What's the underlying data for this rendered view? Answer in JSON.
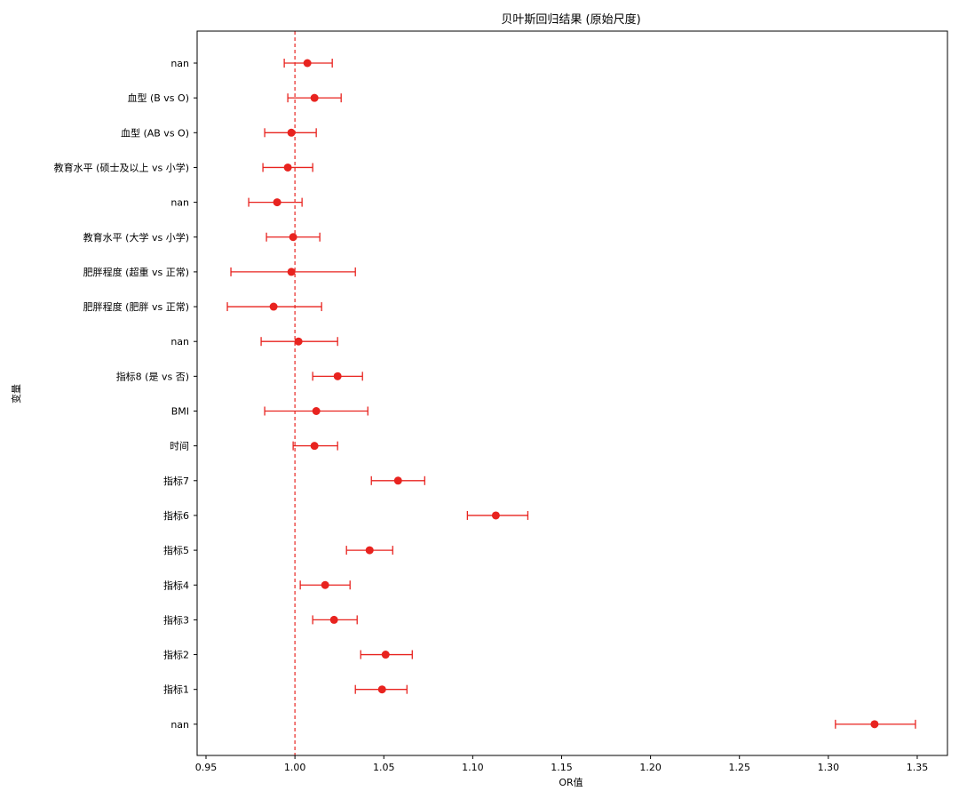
{
  "chart_data": {
    "type": "scatter",
    "subtype": "forest-plot",
    "title": "贝叶斯回归结果 (原始尺度)",
    "xlabel": "OR值",
    "ylabel": "变量",
    "xlim": [
      0.945,
      1.367
    ],
    "xticks": [
      0.95,
      1.0,
      1.05,
      1.1,
      1.15,
      1.2,
      1.25,
      1.3,
      1.35
    ],
    "xtick_labels": [
      "0.95",
      "1.00",
      "1.05",
      "1.10",
      "1.15",
      "1.20",
      "1.25",
      "1.30",
      "1.35"
    ],
    "reference_line": {
      "x": 1.0,
      "style": "dashed",
      "color": "#e8231f"
    },
    "marker_color": "#e8231f",
    "grid": false,
    "series": [
      {
        "values": [
          {
            "label": "nan",
            "or": 1.007,
            "lower": 0.994,
            "upper": 1.021
          },
          {
            "label": "血型 (B vs O)",
            "or": 1.011,
            "lower": 0.996,
            "upper": 1.026
          },
          {
            "label": "血型 (AB vs O)",
            "or": 0.998,
            "lower": 0.983,
            "upper": 1.012
          },
          {
            "label": "教育水平 (硕士及以上 vs 小学)",
            "or": 0.996,
            "lower": 0.982,
            "upper": 1.01
          },
          {
            "label": "nan",
            "or": 0.99,
            "lower": 0.974,
            "upper": 1.004
          },
          {
            "label": "教育水平 (大学 vs 小学)",
            "or": 0.999,
            "lower": 0.984,
            "upper": 1.014
          },
          {
            "label": "肥胖程度 (超重 vs 正常)",
            "or": 0.998,
            "lower": 0.964,
            "upper": 1.034
          },
          {
            "label": "肥胖程度 (肥胖 vs 正常)",
            "or": 0.988,
            "lower": 0.962,
            "upper": 1.015
          },
          {
            "label": "nan",
            "or": 1.002,
            "lower": 0.981,
            "upper": 1.024
          },
          {
            "label": "指标8 (是 vs 否)",
            "or": 1.024,
            "lower": 1.01,
            "upper": 1.038
          },
          {
            "label": "BMI",
            "or": 1.012,
            "lower": 0.983,
            "upper": 1.041
          },
          {
            "label": "时间",
            "or": 1.011,
            "lower": 0.999,
            "upper": 1.024
          },
          {
            "label": "指标7",
            "or": 1.058,
            "lower": 1.043,
            "upper": 1.073
          },
          {
            "label": "指标6",
            "or": 1.113,
            "lower": 1.097,
            "upper": 1.131
          },
          {
            "label": "指标5",
            "or": 1.042,
            "lower": 1.029,
            "upper": 1.055
          },
          {
            "label": "指标4",
            "or": 1.017,
            "lower": 1.003,
            "upper": 1.031
          },
          {
            "label": "指标3",
            "or": 1.022,
            "lower": 1.01,
            "upper": 1.035
          },
          {
            "label": "指标2",
            "or": 1.051,
            "lower": 1.037,
            "upper": 1.066
          },
          {
            "label": "指标1",
            "or": 1.049,
            "lower": 1.034,
            "upper": 1.063
          },
          {
            "label": "nan",
            "or": 1.326,
            "lower": 1.304,
            "upper": 1.349
          }
        ]
      }
    ]
  }
}
